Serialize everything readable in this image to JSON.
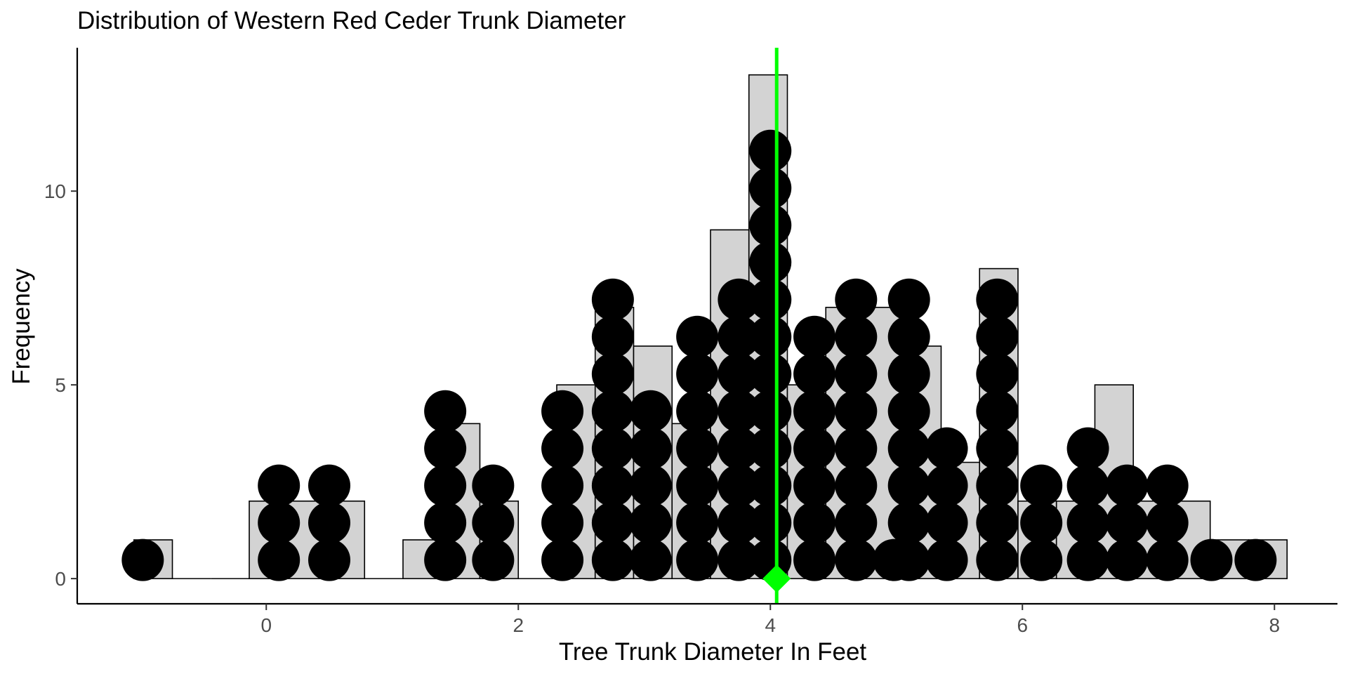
{
  "chart_data": {
    "type": "histogram_with_dotplot",
    "title": "Distribution of Western Red Ceder Trunk Diameter",
    "xlabel": "Tree Trunk Diameter In Feet",
    "ylabel": "Frequency",
    "xlim": [
      -1.5,
      8.5
    ],
    "ylim": [
      -0.65,
      13.7
    ],
    "x_ticks": [
      0,
      2,
      4,
      6,
      8
    ],
    "y_ticks": [
      0,
      5,
      10
    ],
    "grid": false,
    "colors": {
      "bar_fill": "#d3d3d3",
      "bar_outline": "#000000",
      "dots": "#000000",
      "mean_line": "#00ff00",
      "axis_text": "#4d4d4d"
    },
    "histogram": {
      "bin_width": 0.305,
      "bins": [
        {
          "x_start": -1.05,
          "count": 1
        },
        {
          "x_start": -0.745,
          "count": 0
        },
        {
          "x_start": -0.44,
          "count": 0
        },
        {
          "x_start": -0.135,
          "count": 2
        },
        {
          "x_start": 0.17,
          "count": 2
        },
        {
          "x_start": 0.475,
          "count": 2
        },
        {
          "x_start": 0.78,
          "count": 0
        },
        {
          "x_start": 1.085,
          "count": 1
        },
        {
          "x_start": 1.39,
          "count": 4
        },
        {
          "x_start": 1.695,
          "count": 2
        },
        {
          "x_start": 2.0,
          "count": 0
        },
        {
          "x_start": 2.305,
          "count": 5
        },
        {
          "x_start": 2.61,
          "count": 7
        },
        {
          "x_start": 2.915,
          "count": 6
        },
        {
          "x_start": 3.22,
          "count": 4
        },
        {
          "x_start": 3.525,
          "count": 9
        },
        {
          "x_start": 3.83,
          "count": 13
        },
        {
          "x_start": 4.135,
          "count": 5
        },
        {
          "x_start": 4.44,
          "count": 7
        },
        {
          "x_start": 4.745,
          "count": 7
        },
        {
          "x_start": 5.05,
          "count": 6
        },
        {
          "x_start": 5.355,
          "count": 3
        },
        {
          "x_start": 5.66,
          "count": 8
        },
        {
          "x_start": 5.965,
          "count": 2
        },
        {
          "x_start": 6.27,
          "count": 2
        },
        {
          "x_start": 6.575,
          "count": 5
        },
        {
          "x_start": 6.88,
          "count": 2
        },
        {
          "x_start": 7.185,
          "count": 2
        },
        {
          "x_start": 7.49,
          "count": 1
        },
        {
          "x_start": 7.795,
          "count": 1
        }
      ]
    },
    "dotplot": {
      "stacks": [
        {
          "x": -0.98,
          "count": 1
        },
        {
          "x": 0.1,
          "count": 3
        },
        {
          "x": 0.5,
          "count": 3
        },
        {
          "x": 1.42,
          "count": 5
        },
        {
          "x": 1.8,
          "count": 3
        },
        {
          "x": 2.35,
          "count": 5
        },
        {
          "x": 2.75,
          "count": 8
        },
        {
          "x": 3.05,
          "count": 5
        },
        {
          "x": 3.42,
          "count": 7
        },
        {
          "x": 3.75,
          "count": 8
        },
        {
          "x": 4.0,
          "count": 12
        },
        {
          "x": 4.35,
          "count": 7
        },
        {
          "x": 4.68,
          "count": 8
        },
        {
          "x": 4.98,
          "count": 1
        },
        {
          "x": 5.1,
          "count": 8
        },
        {
          "x": 5.4,
          "count": 4
        },
        {
          "x": 5.8,
          "count": 8
        },
        {
          "x": 6.15,
          "count": 3
        },
        {
          "x": 6.52,
          "count": 4
        },
        {
          "x": 6.83,
          "count": 3
        },
        {
          "x": 7.15,
          "count": 3
        },
        {
          "x": 7.5,
          "count": 1
        },
        {
          "x": 7.85,
          "count": 1
        }
      ]
    },
    "mean_line": {
      "x": 4.05
    },
    "mean_marker": {
      "x": 4.05,
      "y": 0,
      "shape": "diamond"
    }
  }
}
